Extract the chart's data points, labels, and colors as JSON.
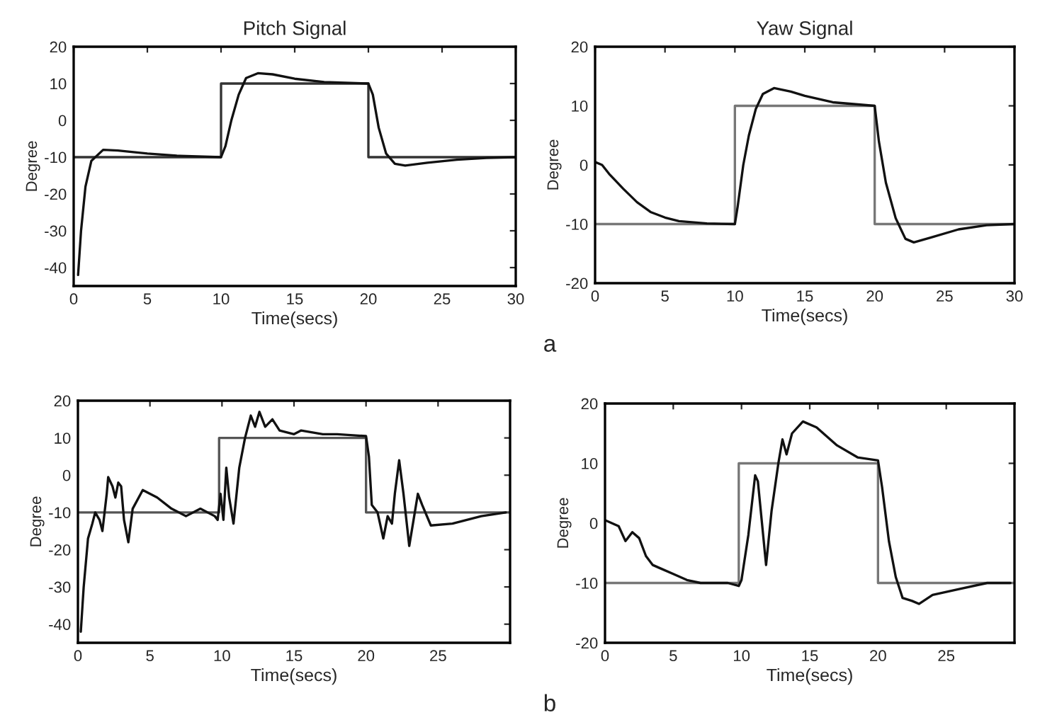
{
  "chart_data": [
    {
      "type": "line",
      "title": "Pitch Signal",
      "xlabel": "Time(secs)",
      "ylabel": "Degree",
      "xlim": [
        0,
        30
      ],
      "ylim": [
        -45,
        20
      ],
      "xticks": [
        0,
        5,
        10,
        15,
        20,
        25,
        30
      ],
      "yticks": [
        -40,
        -30,
        -20,
        -10,
        0,
        10,
        20
      ],
      "series": [
        {
          "color": "#333333",
          "x": [
            0,
            10,
            10,
            20,
            20,
            30
          ],
          "values": [
            -10,
            -10,
            10,
            10,
            -10,
            -10
          ]
        },
        {
          "color": "#111111",
          "x": [
            0.3,
            0.5,
            0.8,
            1.2,
            2,
            3,
            5,
            7,
            10,
            10.3,
            10.7,
            11.2,
            11.7,
            12.5,
            13.5,
            15,
            17,
            20,
            20.3,
            20.7,
            21.2,
            21.8,
            22.5,
            24,
            26,
            28,
            30
          ],
          "values": [
            -42,
            -30,
            -18,
            -11,
            -8,
            -8.2,
            -9,
            -9.6,
            -10,
            -7,
            0,
            7,
            11.5,
            12.8,
            12.5,
            11.3,
            10.4,
            10,
            7,
            -2,
            -9,
            -11.8,
            -12.3,
            -11.5,
            -10.7,
            -10.2,
            -10
          ]
        }
      ]
    },
    {
      "type": "line",
      "title": "Yaw Signal",
      "xlabel": "Time(secs)",
      "ylabel": "Degree",
      "xlim": [
        0,
        30
      ],
      "ylim": [
        -20,
        20
      ],
      "xticks": [
        0,
        5,
        10,
        15,
        20,
        25,
        30
      ],
      "yticks": [
        -20,
        -10,
        0,
        10,
        20
      ],
      "annotations": [
        "a"
      ],
      "series": [
        {
          "color": "#777777",
          "x": [
            0,
            10,
            10,
            20,
            20,
            30
          ],
          "values": [
            -10,
            -10,
            10,
            10,
            -10,
            -10
          ]
        },
        {
          "color": "#111111",
          "x": [
            0,
            0.5,
            1,
            2,
            3,
            4,
            5,
            6,
            8,
            10,
            10.2,
            10.6,
            11,
            11.5,
            12,
            12.8,
            14,
            15,
            17,
            20,
            20.3,
            20.8,
            21.5,
            22.2,
            22.8,
            24,
            26,
            28,
            30
          ],
          "values": [
            0.5,
            0,
            -1.5,
            -4,
            -6.3,
            -8,
            -8.9,
            -9.5,
            -9.9,
            -10,
            -7,
            0,
            5,
            9.5,
            12,
            13,
            12.4,
            11.7,
            10.6,
            10,
            4,
            -3,
            -9,
            -12.5,
            -13.1,
            -12.3,
            -10.9,
            -10.2,
            -10
          ]
        }
      ]
    },
    {
      "type": "line",
      "xlabel": "Time(secs)",
      "ylabel": "Degree",
      "xlim": [
        0,
        30
      ],
      "ylim": [
        -45,
        20
      ],
      "xticks": [
        0,
        5,
        10,
        15,
        20,
        25
      ],
      "yticks": [
        -40,
        -30,
        -20,
        -10,
        0,
        10,
        20
      ],
      "series": [
        {
          "color": "#555555",
          "x": [
            0,
            9.8,
            9.8,
            20,
            20,
            30
          ],
          "values": [
            -10,
            -10,
            10,
            10,
            -10,
            -10
          ]
        },
        {
          "color": "#111111",
          "x": [
            0.2,
            0.4,
            0.7,
            1,
            1.2,
            1.5,
            1.7,
            2,
            2.1,
            2.4,
            2.6,
            2.8,
            3,
            3.2,
            3.5,
            3.8,
            4.5,
            5.5,
            6.5,
            7.5,
            8.5,
            9.5,
            9.7,
            9.9,
            10.1,
            10.3,
            10.5,
            10.8,
            11.2,
            11.6,
            12,
            12.3,
            12.6,
            13,
            13.5,
            14,
            15,
            15.5,
            17,
            18,
            20,
            20.2,
            20.4,
            20.8,
            21.2,
            21.5,
            21.8,
            22,
            22.3,
            22.6,
            23,
            23.3,
            23.6,
            23.9,
            24.5,
            26,
            28,
            29.7
          ],
          "values": [
            -42,
            -30,
            -17,
            -13,
            -10,
            -12,
            -15,
            -5,
            -0.5,
            -3,
            -6,
            -2,
            -3,
            -12,
            -18,
            -9,
            -4,
            -6,
            -9,
            -11,
            -9,
            -11,
            -12,
            -5,
            -12,
            2,
            -6,
            -13,
            2,
            10,
            16,
            13,
            17,
            13,
            15,
            12,
            11,
            12,
            11,
            11,
            10.5,
            5,
            -8,
            -10,
            -17,
            -11,
            -13,
            -5,
            4,
            -5,
            -19,
            -12,
            -5,
            -8,
            -13.5,
            -13,
            -11,
            -10
          ]
        }
      ]
    },
    {
      "type": "line",
      "xlabel": "Time(secs)",
      "ylabel": "Degree",
      "xlim": [
        0,
        30
      ],
      "ylim": [
        -20,
        20
      ],
      "xticks": [
        0,
        5,
        10,
        15,
        20,
        25
      ],
      "yticks": [
        -20,
        -10,
        0,
        10,
        20
      ],
      "annotations": [
        "b"
      ],
      "series": [
        {
          "color": "#777777",
          "x": [
            0,
            9.8,
            9.8,
            20,
            20,
            30
          ],
          "values": [
            -10,
            -10,
            10,
            10,
            -10,
            -10
          ]
        },
        {
          "color": "#111111",
          "x": [
            0,
            0.5,
            1,
            1.5,
            2,
            2.5,
            3,
            3.5,
            4,
            5,
            6,
            7,
            8,
            9,
            9.8,
            10,
            10.5,
            11,
            11.2,
            11.5,
            11.8,
            12.2,
            12.7,
            13,
            13.3,
            13.7,
            14.5,
            15.5,
            17,
            18.5,
            20,
            20.3,
            20.8,
            21.3,
            21.8,
            22.5,
            23,
            24,
            26,
            28,
            29.7
          ],
          "values": [
            0.5,
            0,
            -0.5,
            -3,
            -1.5,
            -2.5,
            -5.5,
            -7,
            -7.5,
            -8.5,
            -9.5,
            -10,
            -10,
            -10,
            -10.5,
            -9.5,
            -2,
            8,
            7,
            0,
            -7,
            2,
            10,
            14,
            11.5,
            15,
            17,
            16,
            13,
            11,
            10.5,
            6,
            -3,
            -9,
            -12.5,
            -13,
            -13.5,
            -12,
            -11,
            -10,
            -10
          ]
        }
      ]
    }
  ]
}
